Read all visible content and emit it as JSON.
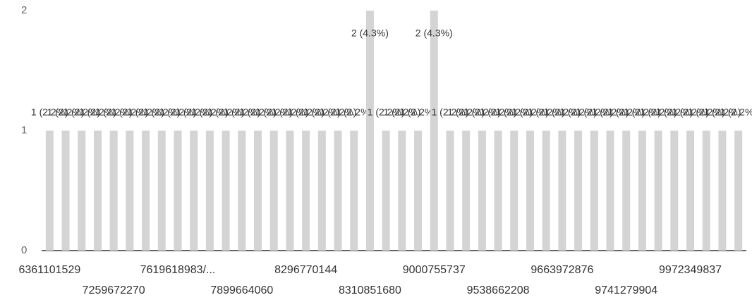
{
  "chart_data": {
    "type": "bar",
    "categories": [
      "6361101529",
      null,
      null,
      null,
      "7259672270",
      null,
      null,
      null,
      "7619618983/...",
      null,
      null,
      null,
      "7899664060",
      null,
      null,
      null,
      "8296770144",
      null,
      null,
      null,
      "8310851680",
      null,
      null,
      null,
      "9000755737",
      null,
      null,
      null,
      "9538662208",
      null,
      null,
      null,
      "9663972876",
      null,
      null,
      null,
      "9741279904",
      null,
      null,
      null,
      "9972349837",
      null,
      null,
      null
    ],
    "values": [
      1,
      1,
      1,
      1,
      1,
      1,
      1,
      1,
      1,
      1,
      1,
      1,
      1,
      1,
      1,
      1,
      1,
      1,
      1,
      1,
      2,
      1,
      1,
      1,
      2,
      1,
      1,
      1,
      1,
      1,
      1,
      1,
      1,
      1,
      1,
      1,
      1,
      1,
      1,
      1,
      1,
      1,
      1,
      1
    ],
    "value_labels": [
      "1 (2.2%)",
      "1 (2.2%)",
      "1 (2.2%)",
      "1 (2.2%)",
      "1 (2.2%)",
      "1 (2.2%)",
      "1 (2.2%)",
      "1 (2.2%)",
      "1 (2.2%)",
      "1 (2.2%)",
      "1 (2.2%)",
      "1 (2.2%)",
      "1 (2.2%)",
      "1 (2.2%)",
      "1 (2.2%)",
      "1 (2.2%)",
      "1 (2.2%)",
      "1 (2.2%)",
      "1 (2.2%)",
      "1 (2.2%)",
      "2 (4.3%)",
      "1 (2.2%)",
      "1 (2.2%)",
      "1 (2.2%)",
      "2 (4.3%)",
      "1 (2.2%)",
      "1 (2.2%)",
      "1 (2.2%)",
      "1 (2.2%)",
      "1 (2.2%)",
      "1 (2.2%)",
      "1 (2.2%)",
      "1 (2.2%)",
      "1 (2.2%)",
      "1 (2.2%)",
      "1 (2.2%)",
      "1 (2.2%)",
      "1 (2.2%)",
      "1 (2.2%)",
      "1 (2.2%)",
      "1 (2.2%)",
      "1 (2.2%)",
      "1 (2.2%)",
      "1 (2.2%)"
    ],
    "color": "#d4d4d4",
    "ylim": [
      0,
      2
    ],
    "yticks": [
      0,
      1,
      2
    ]
  }
}
